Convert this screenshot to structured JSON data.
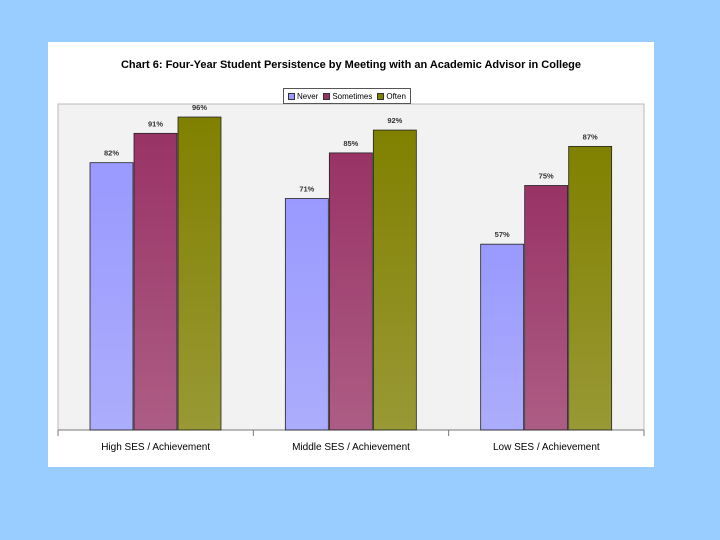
{
  "chart_data": {
    "type": "bar",
    "title": "Chart 6: Four-Year Student Persistence by Meeting with an Academic Advisor in College",
    "categories": [
      "High SES / Achievement",
      "Middle SES / Achievement",
      "Low SES / Achievement"
    ],
    "series": [
      {
        "name": "Never",
        "values": [
          82,
          71,
          57
        ],
        "labels": [
          "82%",
          "71%",
          "57%"
        ],
        "color": "#9999ff"
      },
      {
        "name": "Sometimes",
        "values": [
          91,
          85,
          75
        ],
        "labels": [
          "91%",
          "85%",
          "75%"
        ],
        "color": "#993366"
      },
      {
        "name": "Often",
        "values": [
          96,
          92,
          87
        ],
        "labels": [
          "96%",
          "92%",
          "87%"
        ],
        "color": "#808000"
      }
    ],
    "ylim": [
      0,
      100
    ],
    "grid": false,
    "legend_position": "top-center",
    "plot_background": "#f2f2f2",
    "background": "#99ccff"
  }
}
